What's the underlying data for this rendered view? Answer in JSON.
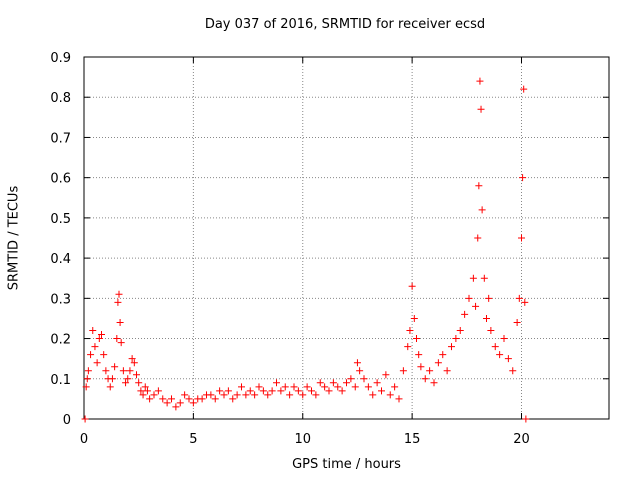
{
  "chart_data": {
    "type": "scatter",
    "title": "Day 037 of 2016, SRMTID for receiver ecsd",
    "xlabel": "GPS time / hours",
    "ylabel": "SRMTID / TECUs",
    "xlim": [
      0,
      24
    ],
    "ylim": [
      0,
      0.9
    ],
    "xticks": [
      "0",
      "5",
      "10",
      "15",
      "20"
    ],
    "yticks": [
      "0",
      "0.1",
      "0.2",
      "0.3",
      "0.4",
      "0.5",
      "0.6",
      "0.7",
      "0.8",
      "0.9"
    ],
    "grid": true,
    "marker": "+",
    "color": "#ff0000",
    "series": [
      {
        "name": "SRMTID",
        "x": [
          0.05,
          0.1,
          0.15,
          0.2,
          0.3,
          0.4,
          0.5,
          0.6,
          0.7,
          0.8,
          0.9,
          1.0,
          1.1,
          1.2,
          1.3,
          1.4,
          1.5,
          1.55,
          1.6,
          1.65,
          1.7,
          1.8,
          1.9,
          2.0,
          2.1,
          2.2,
          2.3,
          2.4,
          2.5,
          2.6,
          2.7,
          2.8,
          2.9,
          3.0,
          3.2,
          3.4,
          3.6,
          3.8,
          4.0,
          4.2,
          4.4,
          4.6,
          4.8,
          5.0,
          5.2,
          5.4,
          5.6,
          5.8,
          6.0,
          6.2,
          6.4,
          6.6,
          6.8,
          7.0,
          7.2,
          7.4,
          7.6,
          7.8,
          8.0,
          8.2,
          8.4,
          8.6,
          8.8,
          9.0,
          9.2,
          9.4,
          9.6,
          9.8,
          10.0,
          10.2,
          10.4,
          10.6,
          10.8,
          11.0,
          11.2,
          11.4,
          11.6,
          11.8,
          12.0,
          12.2,
          12.4,
          12.5,
          12.6,
          12.8,
          13.0,
          13.2,
          13.4,
          13.6,
          13.8,
          14.0,
          14.2,
          14.4,
          14.6,
          14.8,
          14.9,
          15.0,
          15.1,
          15.2,
          15.3,
          15.4,
          15.6,
          15.8,
          16.0,
          16.2,
          16.4,
          16.6,
          16.8,
          17.0,
          17.2,
          17.4,
          17.6,
          17.8,
          17.9,
          18.0,
          18.05,
          18.1,
          18.15,
          18.2,
          18.3,
          18.4,
          18.5,
          18.6,
          18.8,
          19.0,
          19.2,
          19.4,
          19.6,
          19.8,
          19.9,
          20.0,
          20.05,
          20.1,
          20.15,
          20.2
        ],
        "y": [
          0.0,
          0.08,
          0.1,
          0.12,
          0.16,
          0.22,
          0.18,
          0.14,
          0.2,
          0.21,
          0.16,
          0.12,
          0.1,
          0.08,
          0.1,
          0.13,
          0.2,
          0.29,
          0.31,
          0.24,
          0.19,
          0.12,
          0.09,
          0.1,
          0.12,
          0.15,
          0.14,
          0.11,
          0.09,
          0.07,
          0.06,
          0.08,
          0.07,
          0.05,
          0.06,
          0.07,
          0.05,
          0.04,
          0.05,
          0.03,
          0.04,
          0.06,
          0.05,
          0.04,
          0.05,
          0.05,
          0.06,
          0.06,
          0.05,
          0.07,
          0.06,
          0.07,
          0.05,
          0.06,
          0.08,
          0.06,
          0.07,
          0.06,
          0.08,
          0.07,
          0.06,
          0.07,
          0.09,
          0.07,
          0.08,
          0.06,
          0.08,
          0.07,
          0.06,
          0.08,
          0.07,
          0.06,
          0.09,
          0.08,
          0.07,
          0.09,
          0.08,
          0.07,
          0.09,
          0.1,
          0.08,
          0.14,
          0.12,
          0.1,
          0.08,
          0.06,
          0.09,
          0.07,
          0.11,
          0.06,
          0.08,
          0.05,
          0.12,
          0.18,
          0.22,
          0.33,
          0.25,
          0.2,
          0.16,
          0.13,
          0.1,
          0.12,
          0.09,
          0.14,
          0.16,
          0.12,
          0.18,
          0.2,
          0.22,
          0.26,
          0.3,
          0.35,
          0.28,
          0.45,
          0.58,
          0.84,
          0.77,
          0.52,
          0.35,
          0.25,
          0.3,
          0.22,
          0.18,
          0.16,
          0.2,
          0.15,
          0.12,
          0.24,
          0.3,
          0.45,
          0.6,
          0.82,
          0.29,
          0.0
        ]
      }
    ]
  }
}
